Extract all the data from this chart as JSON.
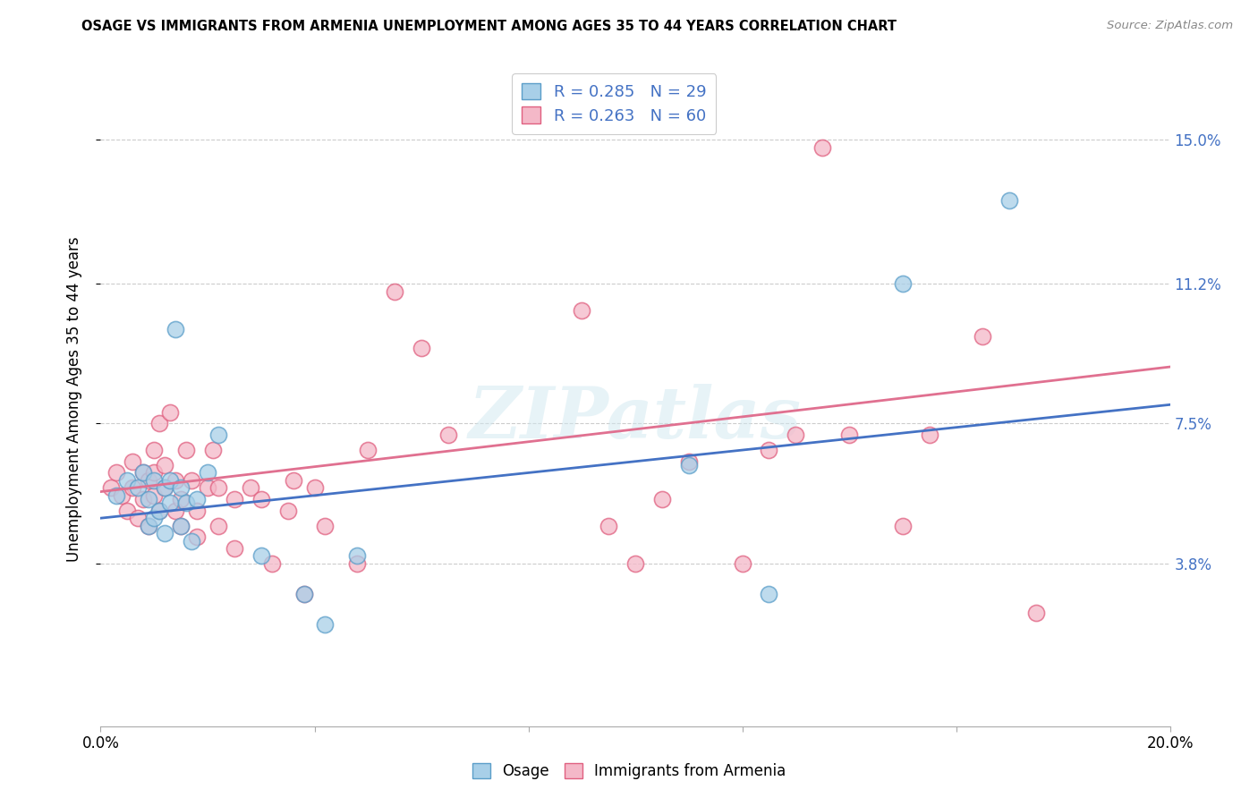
{
  "title": "OSAGE VS IMMIGRANTS FROM ARMENIA UNEMPLOYMENT AMONG AGES 35 TO 44 YEARS CORRELATION CHART",
  "source": "Source: ZipAtlas.com",
  "ylabel": "Unemployment Among Ages 35 to 44 years",
  "xlim": [
    0.0,
    0.2
  ],
  "ylim": [
    -0.005,
    0.168
  ],
  "xticks": [
    0.0,
    0.04,
    0.08,
    0.12,
    0.16,
    0.2
  ],
  "xticklabels": [
    "0.0%",
    "",
    "",
    "",
    "",
    "20.0%"
  ],
  "ytick_positions": [
    0.038,
    0.075,
    0.112,
    0.15
  ],
  "ytick_labels": [
    "3.8%",
    "7.5%",
    "11.2%",
    "15.0%"
  ],
  "legend_label_blue": "Osage",
  "legend_label_pink": "Immigrants from Armenia",
  "color_blue": "#a8cfe8",
  "color_pink": "#f4b8c8",
  "color_blue_edge": "#5b9ec9",
  "color_pink_edge": "#e06080",
  "color_blue_line": "#4472c4",
  "color_pink_line": "#e07090",
  "color_blue_text": "#4472c4",
  "watermark": "ZIPatlas",
  "blue_scatter_x": [
    0.003,
    0.005,
    0.007,
    0.008,
    0.009,
    0.009,
    0.01,
    0.01,
    0.011,
    0.012,
    0.012,
    0.013,
    0.013,
    0.014,
    0.015,
    0.015,
    0.016,
    0.017,
    0.018,
    0.02,
    0.022,
    0.03,
    0.038,
    0.042,
    0.048,
    0.11,
    0.125,
    0.15,
    0.17
  ],
  "blue_scatter_y": [
    0.056,
    0.06,
    0.058,
    0.062,
    0.055,
    0.048,
    0.05,
    0.06,
    0.052,
    0.058,
    0.046,
    0.054,
    0.06,
    0.1,
    0.048,
    0.058,
    0.054,
    0.044,
    0.055,
    0.062,
    0.072,
    0.04,
    0.03,
    0.022,
    0.04,
    0.064,
    0.03,
    0.112,
    0.134
  ],
  "pink_scatter_x": [
    0.002,
    0.003,
    0.004,
    0.005,
    0.006,
    0.006,
    0.007,
    0.008,
    0.008,
    0.009,
    0.009,
    0.01,
    0.01,
    0.01,
    0.011,
    0.011,
    0.012,
    0.012,
    0.013,
    0.014,
    0.014,
    0.015,
    0.015,
    0.016,
    0.017,
    0.018,
    0.018,
    0.02,
    0.021,
    0.022,
    0.022,
    0.025,
    0.025,
    0.028,
    0.03,
    0.032,
    0.035,
    0.036,
    0.038,
    0.04,
    0.042,
    0.048,
    0.05,
    0.055,
    0.06,
    0.065,
    0.09,
    0.095,
    0.1,
    0.105,
    0.11,
    0.12,
    0.125,
    0.13,
    0.135,
    0.14,
    0.15,
    0.155,
    0.165,
    0.175
  ],
  "pink_scatter_y": [
    0.058,
    0.062,
    0.056,
    0.052,
    0.058,
    0.065,
    0.05,
    0.055,
    0.062,
    0.048,
    0.06,
    0.056,
    0.062,
    0.068,
    0.052,
    0.075,
    0.058,
    0.064,
    0.078,
    0.052,
    0.06,
    0.048,
    0.055,
    0.068,
    0.06,
    0.052,
    0.045,
    0.058,
    0.068,
    0.058,
    0.048,
    0.055,
    0.042,
    0.058,
    0.055,
    0.038,
    0.052,
    0.06,
    0.03,
    0.058,
    0.048,
    0.038,
    0.068,
    0.11,
    0.095,
    0.072,
    0.105,
    0.048,
    0.038,
    0.055,
    0.065,
    0.038,
    0.068,
    0.072,
    0.148,
    0.072,
    0.048,
    0.072,
    0.098,
    0.025
  ],
  "blue_line_x0": 0.0,
  "blue_line_y0": 0.05,
  "blue_line_x1": 0.2,
  "blue_line_y1": 0.08,
  "pink_line_x0": 0.0,
  "pink_line_y0": 0.057,
  "pink_line_x1": 0.2,
  "pink_line_y1": 0.09
}
